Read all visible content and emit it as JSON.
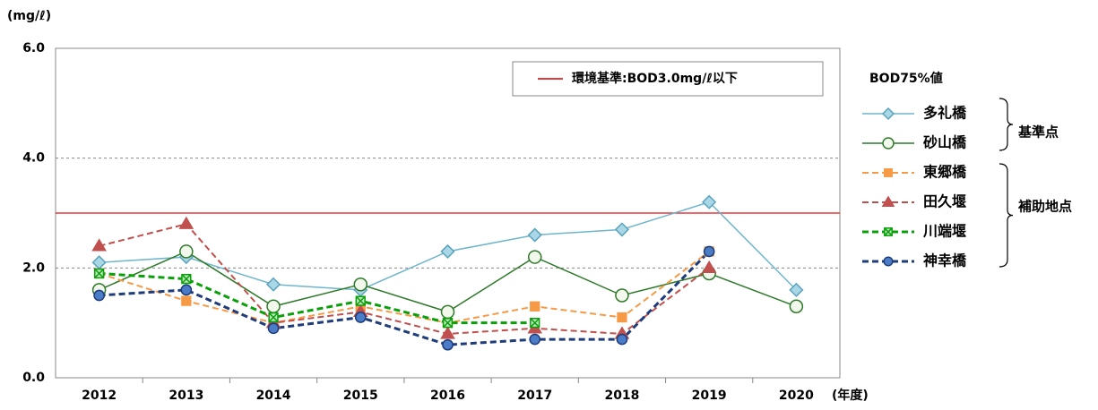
{
  "chart_data": {
    "type": "line",
    "y_unit": "(mg/ℓ)",
    "x_unit": "(年度)",
    "legend_title": "BOD75%値",
    "legend_groups": [
      "基準点",
      "補助地点"
    ],
    "reference_line": {
      "value": 3.0,
      "label": "環境基準:BOD3.0mg/ℓ以下",
      "color": "#e8393c"
    },
    "categories": [
      "2012",
      "2013",
      "2014",
      "2015",
      "2016",
      "2017",
      "2018",
      "2019",
      "2020"
    ],
    "ylim": [
      0,
      6
    ],
    "yticks": [
      {
        "value": 0,
        "label": "0.0"
      },
      {
        "value": 2,
        "label": "2.0"
      },
      {
        "value": 4,
        "label": "4.0"
      },
      {
        "value": 6,
        "label": "6.0"
      }
    ],
    "grid": true,
    "series": [
      {
        "name": "多礼橋",
        "color": "#6fb5cc",
        "marker": "diamond",
        "dash": false,
        "values": [
          2.1,
          2.2,
          1.7,
          1.6,
          2.3,
          2.6,
          2.7,
          3.2,
          1.6
        ]
      },
      {
        "name": "砂山橋",
        "color": "#2f7a2a",
        "marker": "circle-open",
        "dash": false,
        "values": [
          1.6,
          2.3,
          1.3,
          1.7,
          1.2,
          2.2,
          1.5,
          1.9,
          1.3
        ]
      },
      {
        "name": "東郷橋",
        "color": "#f79a46",
        "marker": "square",
        "dash": true,
        "values": [
          1.9,
          1.4,
          1.0,
          1.3,
          1.0,
          1.3,
          1.1,
          2.3,
          null
        ]
      },
      {
        "name": "田久堰",
        "color": "#c0504d",
        "marker": "triangle",
        "dash": true,
        "values": [
          2.4,
          2.8,
          1.0,
          1.2,
          0.8,
          0.9,
          0.8,
          2.0,
          null
        ]
      },
      {
        "name": "川端堰",
        "color": "#0aa00a",
        "marker": "square-x",
        "dash": true,
        "values": [
          1.9,
          1.8,
          1.1,
          1.4,
          1.0,
          1.0,
          null,
          null,
          null
        ]
      },
      {
        "name": "神幸橋",
        "color": "#1f3d7a",
        "marker": "circle",
        "dash": true,
        "values": [
          1.5,
          1.6,
          0.9,
          1.1,
          0.6,
          0.7,
          0.7,
          2.3,
          null
        ]
      }
    ]
  }
}
